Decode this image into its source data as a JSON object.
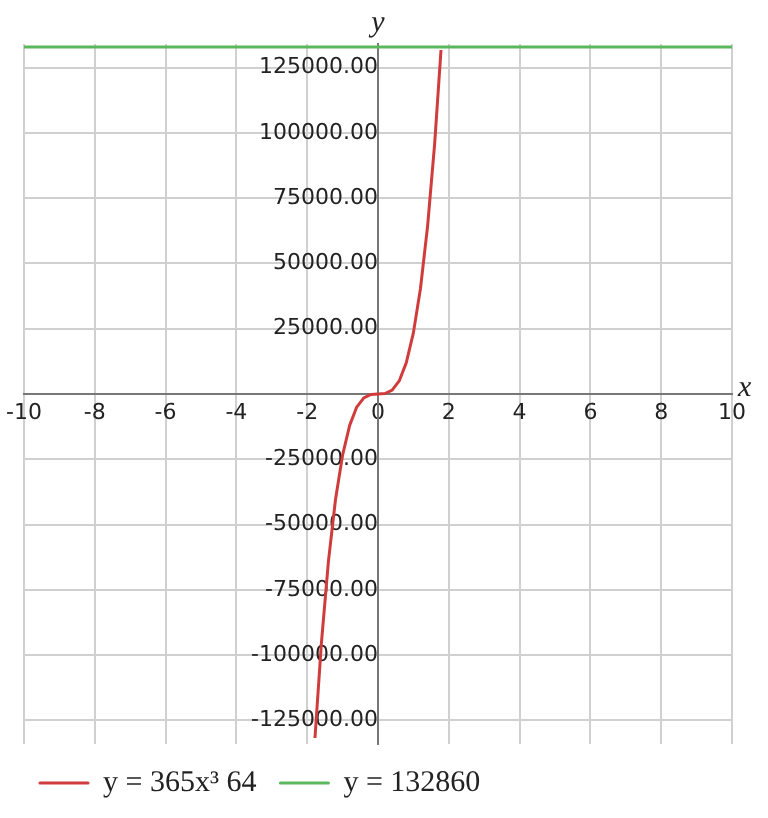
{
  "chart_data": {
    "type": "line",
    "xlabel": "x",
    "ylabel": "y",
    "xlim": [
      -10,
      10
    ],
    "xticks": [
      -10,
      -8,
      -6,
      -4,
      -2,
      0,
      2,
      4,
      6,
      8,
      10
    ],
    "ylim": [
      -134000,
      134000
    ],
    "yticks": [
      {
        "value": -125000,
        "label": "-125000.00"
      },
      {
        "value": -100000,
        "label": "-100000.00"
      },
      {
        "value": -75000,
        "label": "-75000.00"
      },
      {
        "value": -50000,
        "label": "-50000.00"
      },
      {
        "value": -25000,
        "label": "-25000.00"
      },
      {
        "value": 0,
        "label": null
      },
      {
        "value": 25000,
        "label": "25000.00"
      },
      {
        "value": 50000,
        "label": "50000.00"
      },
      {
        "value": 75000,
        "label": "75000.00"
      },
      {
        "value": 100000,
        "label": "100000.00"
      },
      {
        "value": 125000,
        "label": "125000.00"
      }
    ],
    "grid": true,
    "legend": "bottom",
    "marker": "none",
    "series": [
      {
        "name": "y = 365x³ 64",
        "color": "#d03c3c",
        "x": [
          -1.78,
          -1.6,
          -1.4,
          -1.2,
          -1,
          -0.8,
          -0.6,
          -0.4,
          -0.2,
          0,
          0.2,
          0.4,
          0.6,
          0.8,
          1,
          1.2,
          1.4,
          1.6,
          1.78
        ],
        "values": [
          -131700,
          -95700,
          -64100,
          -40400,
          -23400,
          -12000,
          -5000,
          -1500,
          -200,
          0,
          200,
          1500,
          5000,
          12000,
          23400,
          40400,
          64100,
          95700,
          131700
        ]
      },
      {
        "name": "y = 132860",
        "color": "#5cb85c",
        "x": [
          -10,
          10
        ],
        "values": [
          132860,
          132860
        ]
      }
    ]
  }
}
